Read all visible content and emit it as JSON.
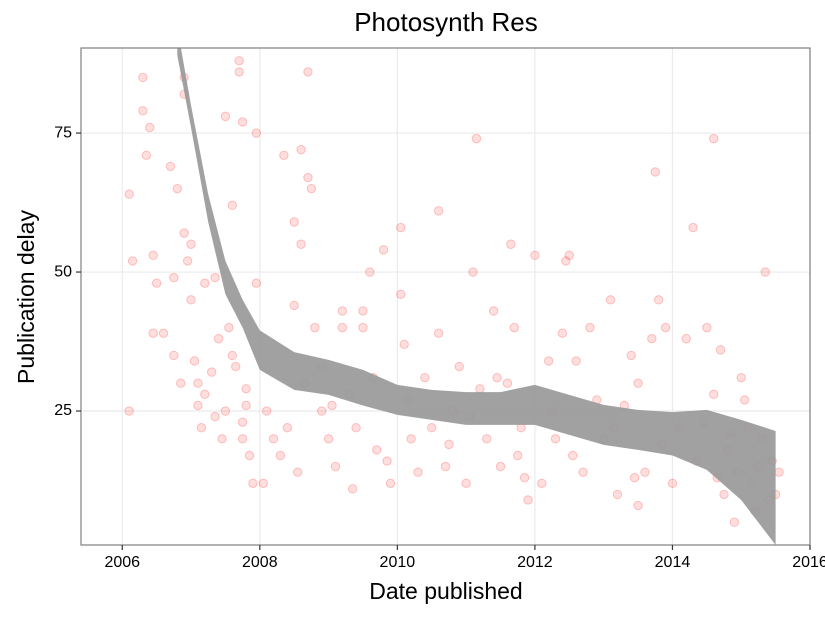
{
  "chart_data": {
    "type": "scatter",
    "title": "Photosynth Res",
    "x_label": "Date published",
    "y_label": "Publication delay",
    "xlim": [
      2005.4,
      2016.0
    ],
    "ylim": [
      0.9,
      90.3
    ],
    "xticks": [
      2006,
      2008,
      2010,
      2012,
      2014,
      2016
    ],
    "yticks": [
      25,
      50,
      75
    ],
    "grid": true,
    "series": [
      {
        "color": "#ff0000",
        "x": [
          2006.1,
          2006.1,
          2006.15,
          2006.3,
          2006.3,
          2006.35,
          2006.4,
          2006.45,
          2006.5,
          2006.45,
          2006.6,
          2006.7,
          2006.75,
          2006.8,
          2006.9,
          2006.9,
          2006.9,
          2006.95,
          2007.0,
          2007.05,
          2007.1,
          2007.15,
          2007.2,
          2007.3,
          2007.35,
          2007.4,
          2007.45,
          2007.5,
          2007.55,
          2007.6,
          2007.65,
          2007.7,
          2007.75,
          2007.8,
          2007.8,
          2007.85,
          2007.9,
          2007.95,
          2007.95,
          2007.6,
          2007.0,
          2007.2,
          2007.35,
          2007.5,
          2007.7,
          2006.75,
          2006.85,
          2007.1,
          2007.75,
          2007.75,
          2008.05,
          2008.1,
          2008.2,
          2008.3,
          2008.35,
          2008.5,
          2008.5,
          2008.6,
          2008.6,
          2008.7,
          2008.75,
          2008.7,
          2008.8,
          2008.9,
          2008.9,
          2009.0,
          2009.1,
          2009.2,
          2009.2,
          2009.3,
          2009.4,
          2009.5,
          2009.5,
          2009.6,
          2009.7,
          2009.8,
          2009.9,
          2008.4,
          2008.55,
          2008.65,
          2009.05,
          2009.35,
          2009.65,
          2009.85,
          2010.05,
          2010.05,
          2010.1,
          2010.2,
          2010.3,
          2010.4,
          2010.5,
          2010.6,
          2010.6,
          2010.7,
          2010.8,
          2010.9,
          2011.0,
          2011.1,
          2011.15,
          2011.2,
          2011.3,
          2011.4,
          2011.5,
          2011.6,
          2011.65,
          2011.7,
          2011.75,
          2011.8,
          2011.9,
          2012.0,
          2011.05,
          2011.45,
          2010.15,
          2010.75,
          2011.85,
          2012.1,
          2012.2,
          2012.3,
          2012.4,
          2012.45,
          2012.5,
          2012.6,
          2012.7,
          2012.8,
          2012.9,
          2013.0,
          2013.1,
          2013.2,
          2013.3,
          2013.4,
          2013.5,
          2013.5,
          2013.6,
          2013.7,
          2013.75,
          2013.8,
          2013.9,
          2014.0,
          2014.1,
          2014.2,
          2014.3,
          2014.35,
          2012.25,
          2012.55,
          2013.15,
          2013.45,
          2013.85,
          2014.5,
          2014.6,
          2014.6,
          2014.7,
          2014.75,
          2014.8,
          2014.9,
          2014.95,
          2015.0,
          2015.1,
          2015.15,
          2015.2,
          2015.3,
          2015.35,
          2015.4,
          2015.45,
          2015.5,
          2015.55,
          2014.45,
          2014.65,
          2015.05,
          2015.25,
          2014.85
        ],
        "values": [
          64,
          25,
          52,
          85,
          79,
          71,
          76,
          53,
          48,
          39,
          39,
          69,
          49,
          65,
          57,
          85,
          82,
          52,
          45,
          34,
          30,
          22,
          28,
          32,
          24,
          38,
          20,
          25,
          40,
          62,
          33,
          86,
          77,
          26,
          29,
          17,
          12,
          48,
          75,
          35,
          55,
          48,
          49,
          78,
          88,
          35,
          30,
          26,
          20,
          23,
          12,
          25,
          20,
          17,
          71,
          44,
          59,
          55,
          72,
          67,
          65,
          86,
          40,
          33,
          25,
          20,
          15,
          43,
          40,
          28,
          22,
          43,
          40,
          50,
          18,
          54,
          12,
          22,
          14,
          30,
          26,
          11,
          31,
          16,
          58,
          46,
          37,
          20,
          14,
          31,
          22,
          39,
          61,
          15,
          25,
          33,
          12,
          50,
          74,
          29,
          20,
          43,
          15,
          30,
          55,
          40,
          17,
          22,
          9,
          53,
          24,
          31,
          27,
          19,
          13,
          12,
          34,
          20,
          39,
          52,
          53,
          34,
          14,
          40,
          27,
          20,
          45,
          10,
          26,
          35,
          8,
          30,
          14,
          38,
          68,
          45,
          40,
          12,
          22,
          38,
          58,
          16,
          25,
          17,
          22,
          13,
          19,
          40,
          74,
          28,
          36,
          10,
          18,
          5,
          14,
          31,
          22,
          12,
          7,
          20,
          50,
          9,
          16,
          10,
          14,
          23,
          13,
          27,
          15,
          21
        ]
      }
    ],
    "band": {
      "color": "#999999",
      "x": [
        2006.8,
        2007.0,
        2007.25,
        2007.5,
        2007.75,
        2008.0,
        2008.5,
        2009.0,
        2009.5,
        2010.0,
        2010.5,
        2011.0,
        2011.5,
        2012.0,
        2012.5,
        2013.0,
        2013.5,
        2014.0,
        2014.5,
        2015.0,
        2015.5
      ],
      "upper": [
        94,
        80,
        64,
        52,
        45,
        39.5,
        35.6,
        34.2,
        32.4,
        29.7,
        28.8,
        28.4,
        28.4,
        29.7,
        27.9,
        26.1,
        25.2,
        24.8,
        25.2,
        23.4,
        21.4
      ],
      "lower": [
        89,
        76,
        59,
        46,
        40,
        32.4,
        28.8,
        27.9,
        26,
        24.3,
        23.4,
        22.5,
        22.5,
        22.5,
        20.7,
        18.9,
        18,
        17,
        14.4,
        9,
        0.9
      ]
    }
  }
}
